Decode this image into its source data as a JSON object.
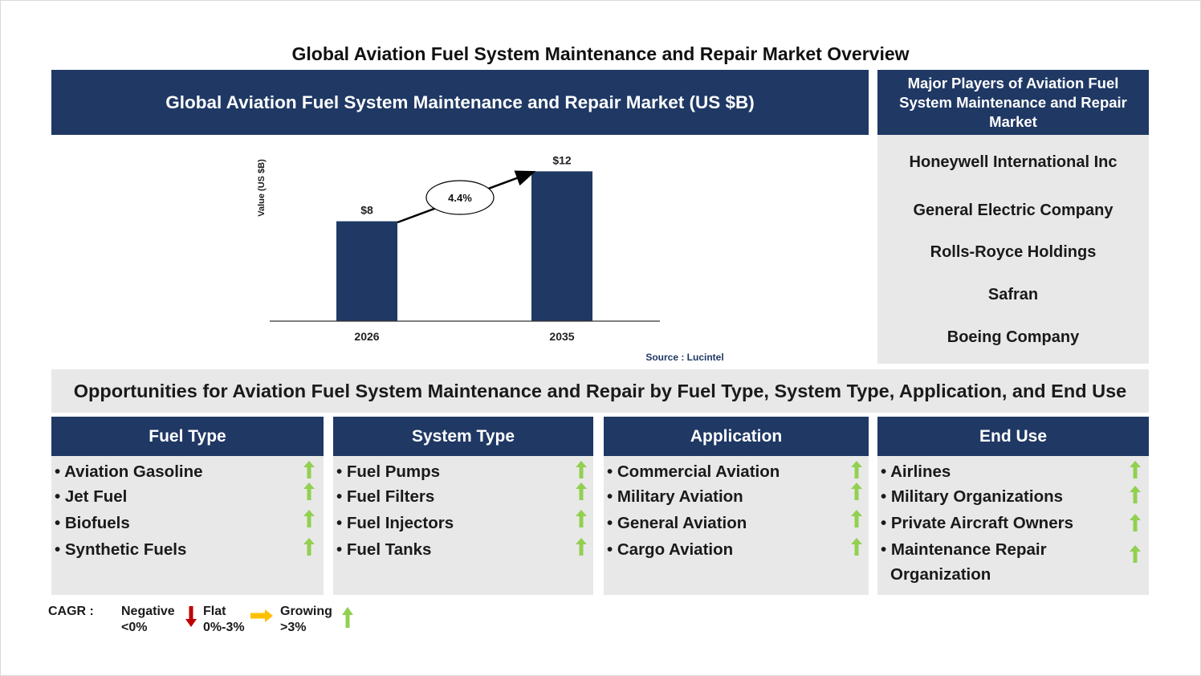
{
  "page_title": "Global Aviation Fuel System Maintenance and Repair Market Overview",
  "chart_panel": {
    "header": "Global Aviation Fuel System Maintenance and Repair Market (US $B)"
  },
  "chart_data": {
    "type": "bar",
    "categories": [
      "2026",
      "2035"
    ],
    "values": [
      8,
      12
    ],
    "value_labels": [
      "$8",
      "$12"
    ],
    "ylabel": "Value (US $B)",
    "cagr_label": "4.4%",
    "source": "Source : Lucintel",
    "bar_color": "#1f3864",
    "grid": false
  },
  "players": {
    "header": "Major Players of Aviation Fuel System Maintenance and Repair Market",
    "items": [
      "Honeywell International Inc",
      "General Electric Company",
      "Rolls-Royce Holdings",
      "Safran",
      "Boeing Company"
    ]
  },
  "opportunities": {
    "title": "Opportunities for Aviation Fuel System Maintenance and Repair by Fuel Type, System Type, Application, and End Use",
    "columns": [
      {
        "header": "Fuel Type",
        "items": [
          "Aviation Gasoline",
          "Jet Fuel",
          "Biofuels",
          "Synthetic Fuels"
        ]
      },
      {
        "header": "System Type",
        "items": [
          "Fuel Pumps",
          "Fuel Filters",
          "Fuel Injectors",
          "Fuel Tanks"
        ]
      },
      {
        "header": "Application",
        "items": [
          "Commercial Aviation",
          "Military Aviation",
          "General Aviation",
          "Cargo Aviation"
        ]
      },
      {
        "header": "End Use",
        "items": [
          "Airlines",
          "Military Organizations",
          "Private Aircraft Owners",
          "Maintenance Repair",
          "Organization"
        ]
      }
    ],
    "trend": "growing"
  },
  "legend": {
    "label": "CAGR :",
    "negative": {
      "name": "Negative",
      "range": "<0%"
    },
    "flat": {
      "name": "Flat",
      "range": "0%-3%"
    },
    "growing": {
      "name": "Growing",
      "range": ">3%"
    }
  },
  "colors": {
    "navy": "#1f3864",
    "panel_gray": "#e8e8e8",
    "up_green": "#92d050",
    "down_red": "#c00000",
    "flat_yellow": "#ffc000"
  }
}
